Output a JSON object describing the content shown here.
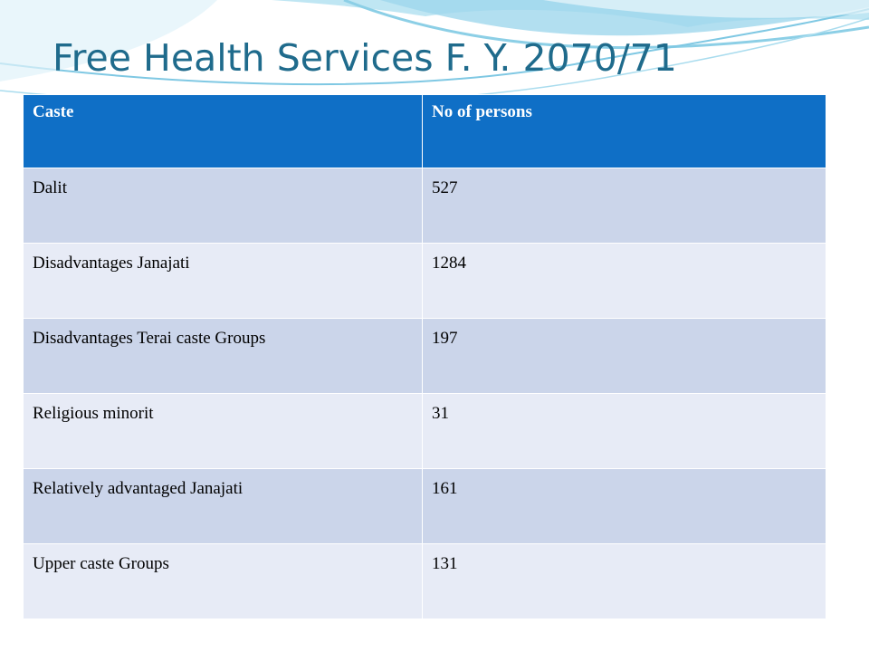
{
  "slide": {
    "title": "Free Health Services F. Y. 2070/71"
  },
  "table": {
    "headers": [
      "Caste",
      "No of persons"
    ],
    "rows": [
      [
        "Dalit",
        "527"
      ],
      [
        "Disadvantages Janajati",
        "1284"
      ],
      [
        "Disadvantages Terai caste Groups",
        "197"
      ],
      [
        "Religious minorit",
        "31"
      ],
      [
        "Relatively advantaged Janajati",
        "161"
      ],
      [
        "Upper caste Groups",
        "131"
      ]
    ]
  },
  "colors": {
    "header_bg": "#0f6fc6",
    "row_dark": "#cbd5ea",
    "row_light": "#e7ebf6",
    "title": "#1f6b8c",
    "wave": "#7fc8e3"
  }
}
